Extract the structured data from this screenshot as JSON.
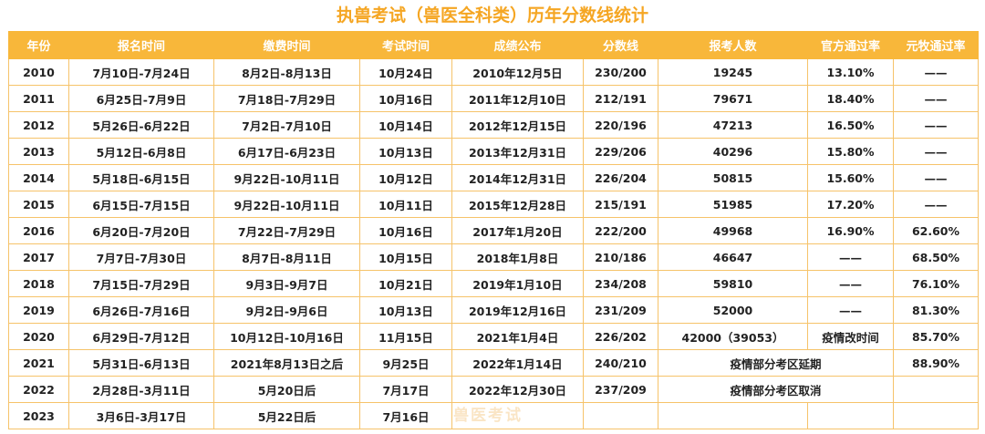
{
  "title": "执兽考试（兽医全科类）历年分数线统计",
  "headers": [
    "年份",
    "报名时间",
    "缴费时间",
    "考试时间",
    "成绩公布",
    "分数线",
    "报考人数",
    "官方通过率",
    "元牧通过率"
  ],
  "rows": [
    [
      "2010",
      "7月10日-7月24日",
      "8月2日-8月13日",
      "10月24日",
      "2010年12月5日",
      "230/200",
      "19245",
      "13.10%",
      "——"
    ],
    [
      "2011",
      "6月25日-7月9日",
      "7月18日-7月29日",
      "10月16日",
      "2011年12月10日",
      "212/191",
      "79671",
      "18.40%",
      "——"
    ],
    [
      "2012",
      "5月26日-6月22日",
      "7月2日-7月10日",
      "10月14日",
      "2012年12月15日",
      "220/196",
      "47213",
      "16.50%",
      "——"
    ],
    [
      "2013",
      "5月12日-6月8日",
      "6月17日-6月23日",
      "10月13日",
      "2013年12月31日",
      "229/206",
      "40296",
      "15.80%",
      "——"
    ],
    [
      "2014",
      "5月18日-6月15日",
      "9月22日-10月11日",
      "10月12日",
      "2014年12月31日",
      "226/204",
      "50815",
      "15.60%",
      "——"
    ],
    [
      "2015",
      "6月15日-7月15日",
      "9月22日-10月11日",
      "10月11日",
      "2015年12月28日",
      "215/191",
      "51985",
      "17.20%",
      "——"
    ],
    [
      "2016",
      "6月20日-7月20日",
      "7月22日-7月29日",
      "10月16日",
      "2017年1月20日",
      "222/200",
      "49968",
      "16.90%",
      "62.60%"
    ],
    [
      "2017",
      "7月7日-7月30日",
      "8月7日-8月11日",
      "10月15日",
      "2018年1月8日",
      "210/186",
      "46647",
      "——",
      "68.50%"
    ],
    [
      "2018",
      "7月15日-7月29日",
      "9月3日-9月7日",
      "10月21日",
      "2019年1月10日",
      "234/208",
      "59810",
      "——",
      "76.10%"
    ],
    [
      "2019",
      "6月26日-7月16日",
      "9月2日-9月6日",
      "10月13日",
      "2019年12月16日",
      "231/209",
      "52000",
      "——",
      "81.30%"
    ],
    [
      "2020",
      "6月29日-7月12日",
      "10月12日-10月16日",
      "11月15日",
      "2021年1月4日",
      "226/202",
      "42000（39053）",
      "疫情改时间",
      "85.70%"
    ],
    [
      "2021",
      "5月31日-6月13日",
      "2021年8月13日之后",
      "9月25日",
      "2022年1月14日",
      "240/210",
      "疫情部分考区延期",
      "",
      "88.90%"
    ],
    [
      "2022",
      "2月28日-3月11日",
      "5月20日后",
      "7月17日",
      "2022年12月30日",
      "237/209",
      "疫情部分考区取消",
      "",
      ""
    ],
    [
      "2023",
      "3月6日-3月17日",
      "5月22日后",
      "7月16日",
      "",
      "",
      "",
      "",
      ""
    ]
  ],
  "watermark": "兽医考试"
}
